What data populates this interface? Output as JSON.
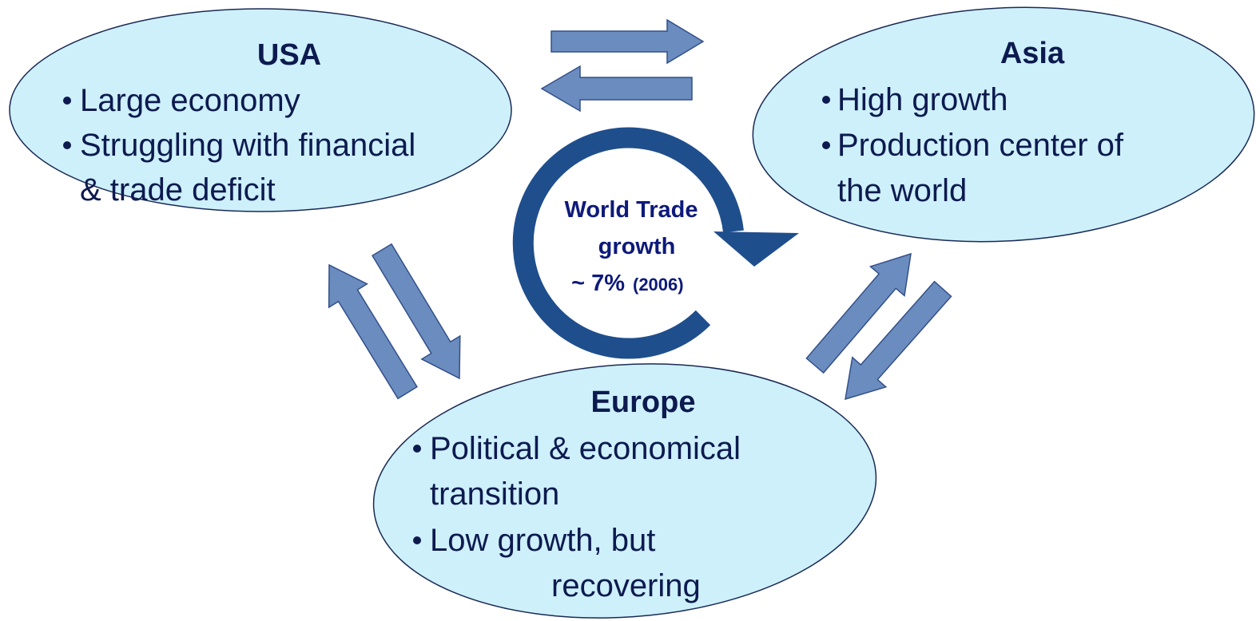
{
  "nodes": [
    {
      "title": "USA",
      "bullets": [
        [
          "Large economy"
        ],
        [
          "Struggling with financial",
          "& trade deficit"
        ]
      ]
    },
    {
      "title": "Asia",
      "bullets": [
        [
          "High growth"
        ],
        [
          "Production center of",
          "the world"
        ]
      ]
    },
    {
      "title": "Europe",
      "bullets": [
        [
          "Political & economical",
          "transition"
        ],
        [
          "Low growth, but",
          "recovering"
        ]
      ]
    }
  ],
  "center": {
    "lines": [
      "World Trade",
      "growth",
      "~ 7%",
      "(2006)"
    ]
  }
}
